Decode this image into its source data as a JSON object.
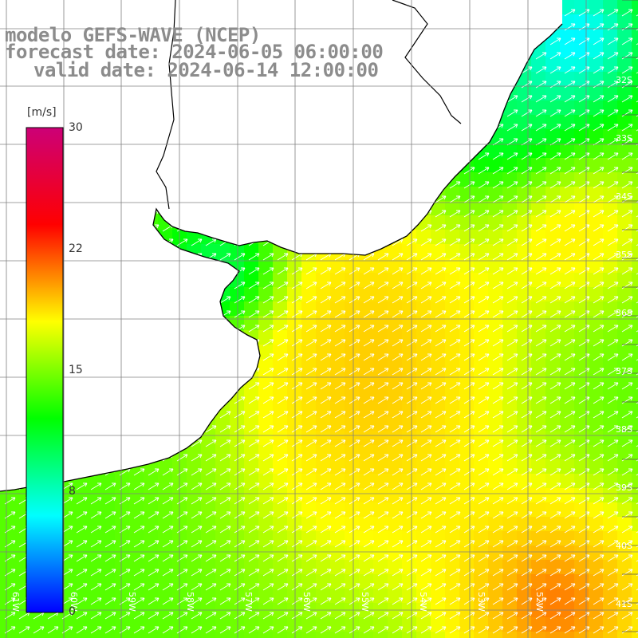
{
  "title": {
    "line1": "modelo GEFS-WAVE (NCEP)",
    "line2": "forecast date: 2024-06-05 06:00:00",
    "line3": "valid date: 2024-06-14 12:00:00"
  },
  "colorbar": {
    "unit": "[m/s]",
    "ticks": [
      "30",
      "22",
      "15",
      "8",
      "0"
    ],
    "tick_values": [
      30,
      22,
      15,
      8,
      0
    ],
    "min": 0,
    "max": 30,
    "colors": [
      "#0000ff",
      "#00ffff",
      "#00ff00",
      "#ffff00",
      "#ff0000",
      "#cc0077"
    ]
  },
  "axes": {
    "lat_labels": [
      "32S",
      "33S",
      "34S",
      "35S",
      "36S",
      "37S",
      "38S",
      "39S",
      "40S",
      "41S"
    ],
    "lon_labels": [
      "61W",
      "60W",
      "59W",
      "58W",
      "57W",
      "56W",
      "55W",
      "54W",
      "53W",
      "52W"
    ]
  },
  "map": {
    "land_color": "#ffffff",
    "coast_color": "#000000",
    "grid_color": "#808080",
    "arrow_color": "#ffffff",
    "field": "wind speed",
    "wind_direction": "from southwest (arrows point northeast)"
  }
}
